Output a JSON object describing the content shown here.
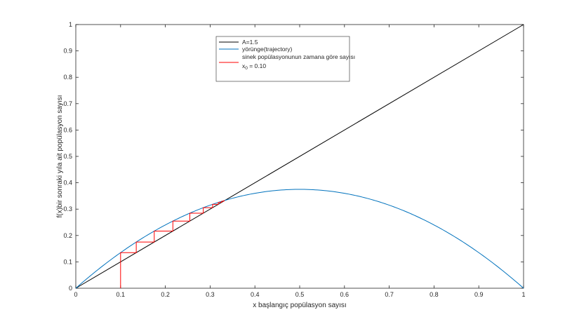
{
  "chart_data": {
    "type": "line",
    "title": "",
    "xlabel": "x başlangıç popülasyon sayısı",
    "ylabel": "f(x)bir sonraki yıla ait popülasyon sayısı",
    "xlim": [
      0,
      1
    ],
    "ylim": [
      0,
      1
    ],
    "xticks": [
      "0",
      "0.1",
      "0.2",
      "0.3",
      "0.4",
      "0.5",
      "0.6",
      "0.7",
      "0.8",
      "0.9",
      "1"
    ],
    "yticks": [
      "0",
      "0.1",
      "0.2",
      "0.3",
      "0.4",
      "0.5",
      "0.6",
      "0.7",
      "0.8",
      "0.9",
      "1"
    ],
    "grid": false,
    "legend_position": "top-center",
    "parameter_A": 1.5,
    "x0": 0.1,
    "series": [
      {
        "name": "A=1.5",
        "color": "#000000",
        "kind": "identity",
        "x": [
          0,
          1
        ],
        "y": [
          0,
          1
        ]
      },
      {
        "name": "yörünge(trajectory)",
        "color": "#0072BD",
        "kind": "logistic",
        "x": [
          0,
          0.05,
          0.1,
          0.15,
          0.2,
          0.25,
          0.3,
          0.35,
          0.4,
          0.45,
          0.5,
          0.55,
          0.6,
          0.65,
          0.7,
          0.75,
          0.8,
          0.85,
          0.9,
          0.95,
          1
        ],
        "y": [
          0,
          0.07125,
          0.135,
          0.19125,
          0.24,
          0.28125,
          0.315,
          0.34125,
          0.36,
          0.37125,
          0.375,
          0.37125,
          0.36,
          0.34125,
          0.315,
          0.28125,
          0.24,
          0.19125,
          0.135,
          0.07125,
          0
        ]
      },
      {
        "name": "sinek popülasyonunun zamana göre sayısı",
        "name_line2": "x",
        "name_line2_sub": "0",
        "name_line2_rest": " = 0.10",
        "color": "#FF0000",
        "kind": "cobweb",
        "x": [
          0.1,
          0.1,
          0.135,
          0.135,
          0.1752,
          0.1752,
          0.2168,
          0.2168,
          0.2547,
          0.2547,
          0.2847,
          0.2847,
          0.3055,
          0.3055,
          0.3182,
          0.3182,
          0.3254,
          0.3254,
          0.3293,
          0.3293,
          0.3313,
          0.3313,
          0.3323
        ],
        "y": [
          0,
          0.135,
          0.135,
          0.1752,
          0.1752,
          0.2168,
          0.2168,
          0.2547,
          0.2547,
          0.2847,
          0.2847,
          0.3055,
          0.3055,
          0.3182,
          0.3182,
          0.3254,
          0.3254,
          0.3293,
          0.3293,
          0.3313,
          0.3313,
          0.3323,
          0.3323
        ]
      }
    ]
  }
}
